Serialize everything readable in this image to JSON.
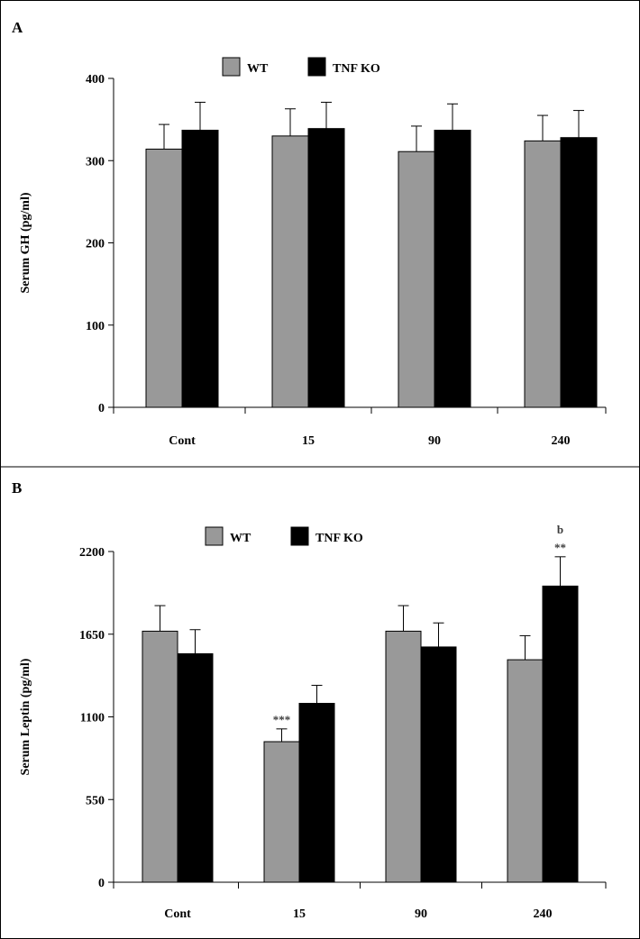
{
  "colors": {
    "wt": "#999999",
    "ko": "#000000",
    "axis": "#000000",
    "frame": "#000000"
  },
  "chart_data": [
    {
      "type": "bar",
      "panel": "A",
      "title": "",
      "ylabel": "Serum GH (pg/ml)",
      "xlabel": "",
      "ylim": [
        0,
        400
      ],
      "yticks": [
        0,
        100,
        200,
        300,
        400
      ],
      "categories": [
        "Cont",
        "15",
        "90",
        "240"
      ],
      "legend": [
        "WT",
        "TNF KO"
      ],
      "series": [
        {
          "name": "WT",
          "values": [
            314,
            330,
            311,
            324
          ],
          "errors": [
            30,
            33,
            31,
            31
          ]
        },
        {
          "name": "TNF KO",
          "values": [
            337,
            339,
            337,
            328
          ],
          "errors": [
            34,
            32,
            32,
            33
          ]
        }
      ],
      "annotations": []
    },
    {
      "type": "bar",
      "panel": "B",
      "title": "",
      "ylabel": "Serum Leptin (pg/ml)",
      "xlabel": "",
      "ylim": [
        0,
        2200
      ],
      "yticks": [
        0,
        550,
        1100,
        1650,
        2200
      ],
      "categories": [
        "Cont",
        "15",
        "90",
        "240"
      ],
      "legend": [
        "WT",
        "TNF KO"
      ],
      "series": [
        {
          "name": "WT",
          "values": [
            1670,
            935,
            1670,
            1480
          ],
          "errors": [
            170,
            85,
            170,
            160
          ]
        },
        {
          "name": "TNF KO",
          "values": [
            1520,
            1190,
            1565,
            1970
          ],
          "errors": [
            160,
            120,
            160,
            195
          ]
        }
      ],
      "annotations": [
        {
          "category": 1,
          "series": 0,
          "lines": [
            "***"
          ]
        },
        {
          "category": 3,
          "series": 1,
          "lines": [
            "b",
            "**"
          ]
        }
      ]
    }
  ]
}
